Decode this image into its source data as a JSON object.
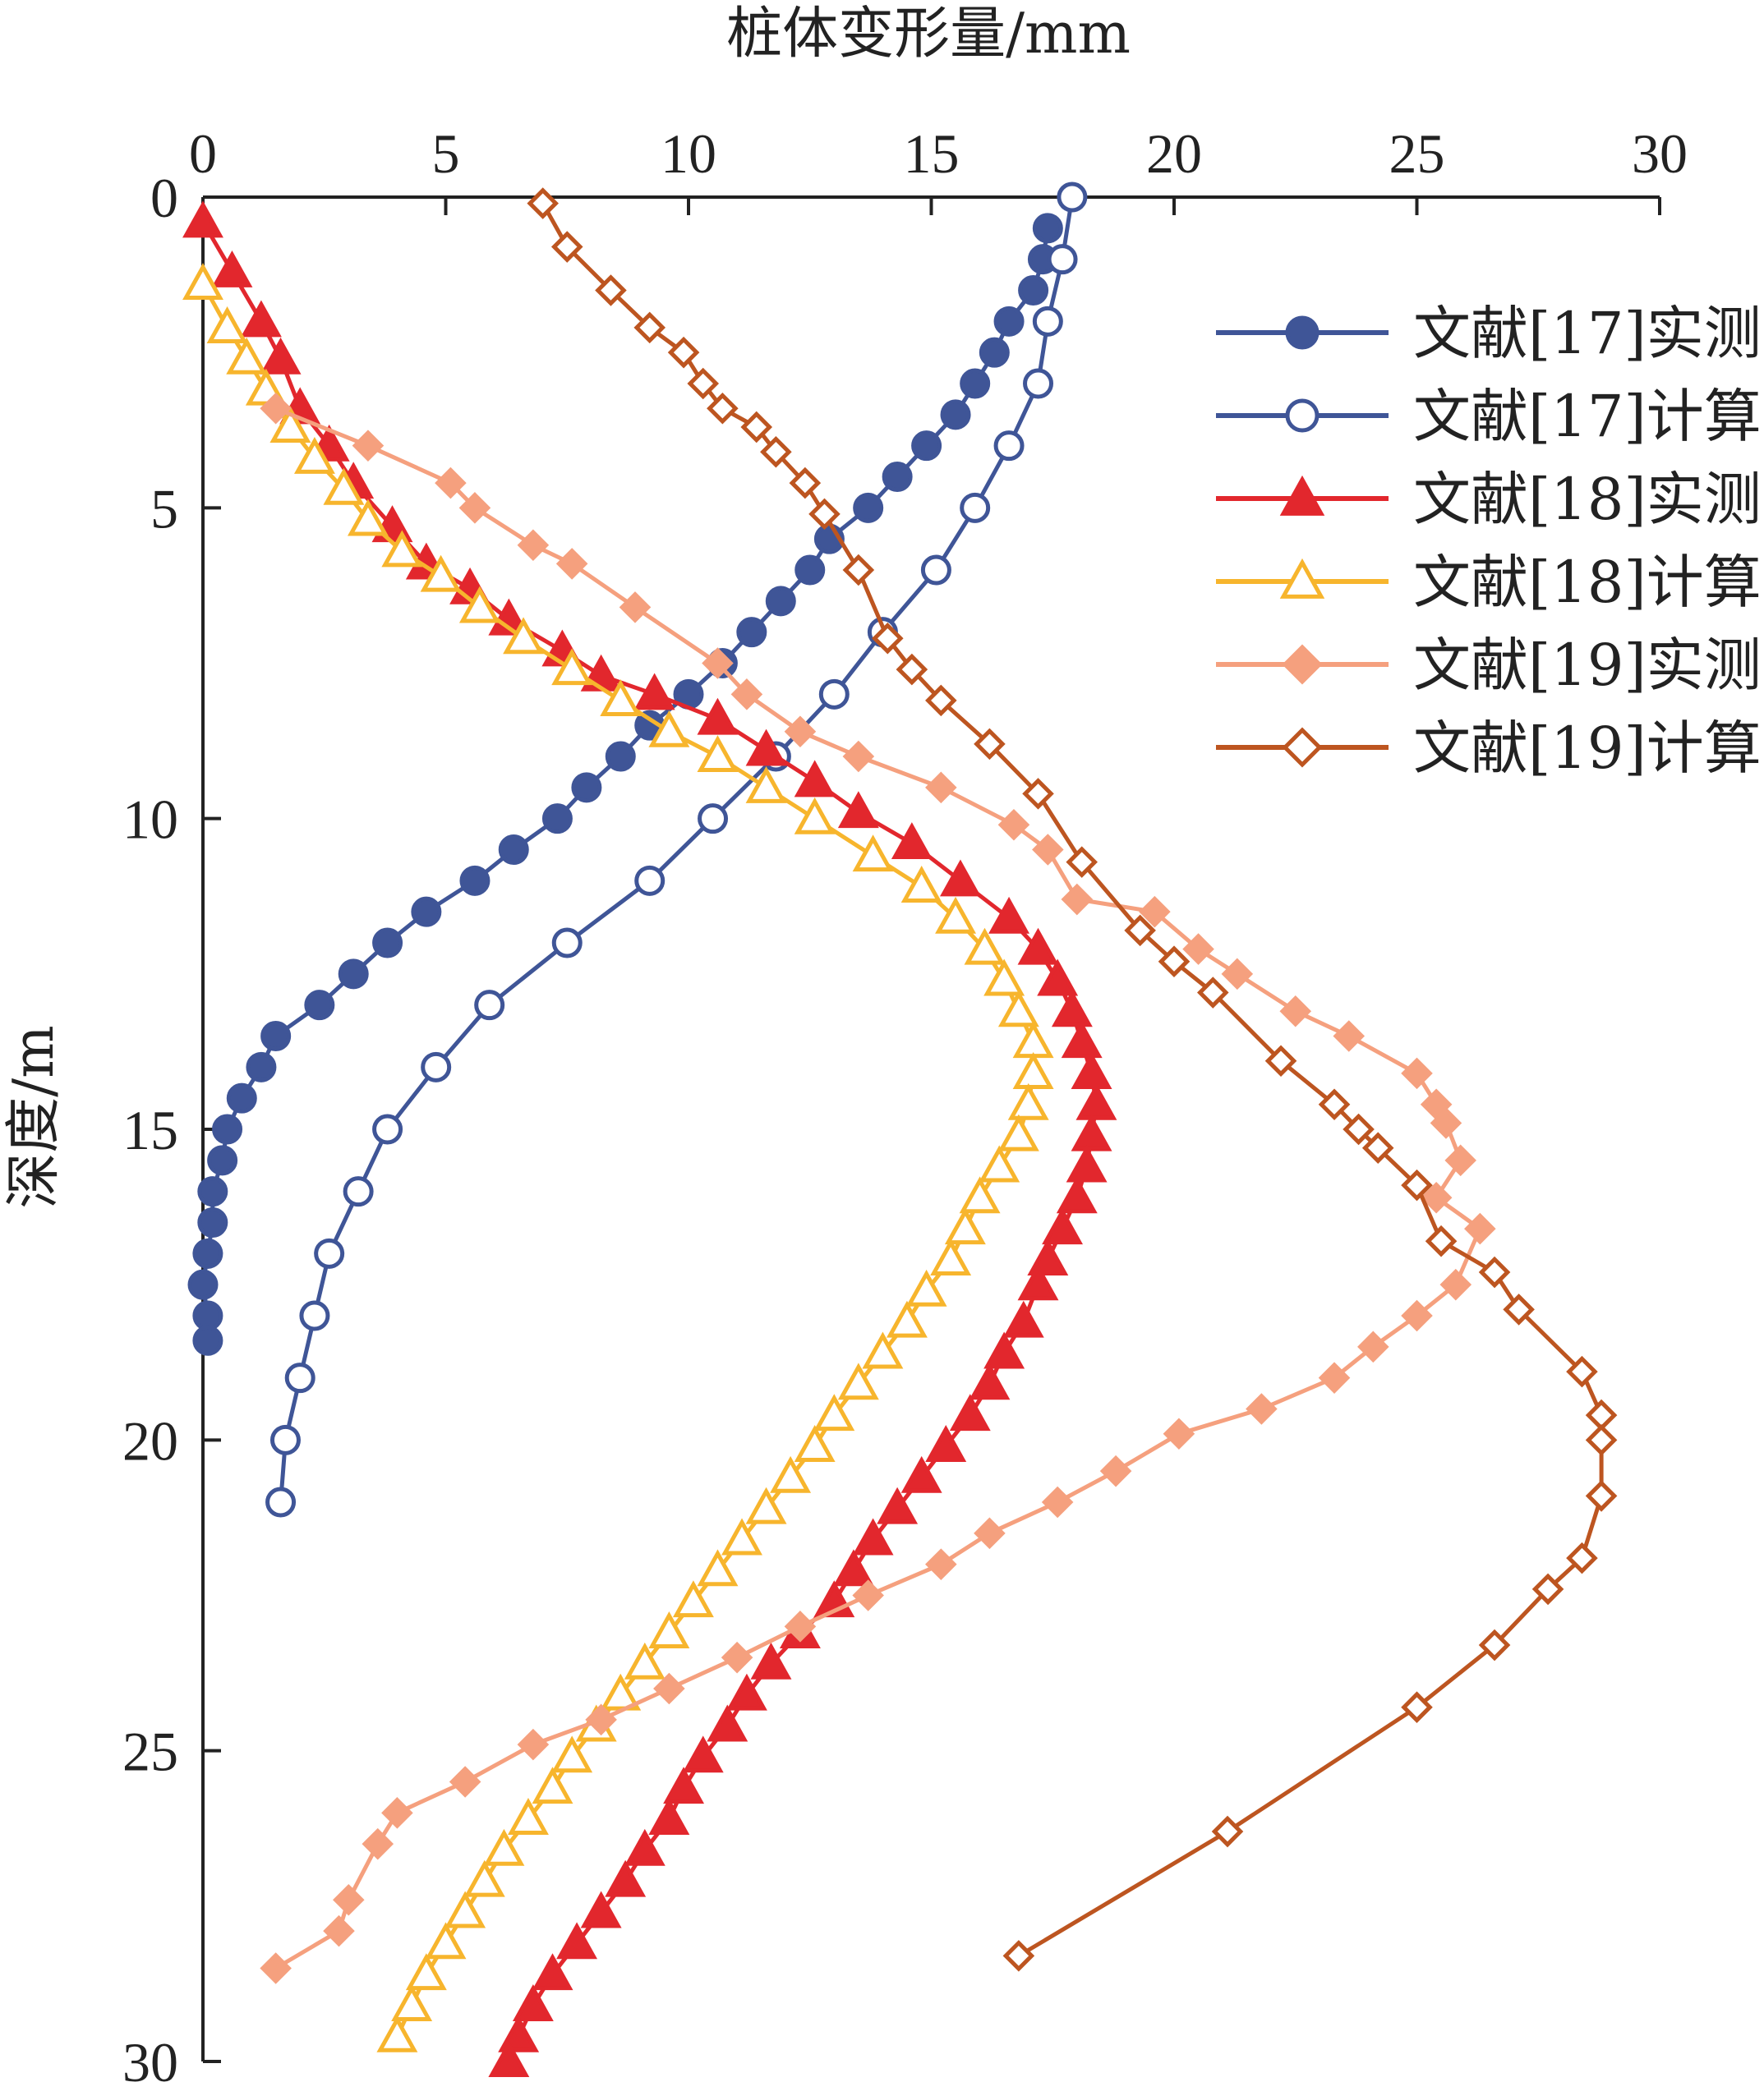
{
  "chart_data": {
    "type": "line",
    "xlabel": "桩体变形量/mm",
    "ylabel": "深度/m",
    "xlim": [
      0,
      30
    ],
    "ylim": [
      0,
      30
    ],
    "x_axis_position": "top",
    "y_inverted": true,
    "xticks": [
      "0",
      "5",
      "10",
      "15",
      "20",
      "25",
      "30"
    ],
    "yticks": [
      "0",
      "5",
      "10",
      "15",
      "20",
      "25",
      "30"
    ],
    "grid": false,
    "legend_position": "top-right",
    "series": [
      {
        "name": "文献[17]实测",
        "color": "#3f5597",
        "marker": "circle",
        "filled": true,
        "points": [
          [
            17.4,
            0.5
          ],
          [
            17.3,
            1.0
          ],
          [
            17.1,
            1.5
          ],
          [
            16.6,
            2.0
          ],
          [
            16.3,
            2.5
          ],
          [
            15.9,
            3.0
          ],
          [
            15.5,
            3.5
          ],
          [
            14.9,
            4.0
          ],
          [
            14.3,
            4.5
          ],
          [
            13.7,
            5.0
          ],
          [
            12.9,
            5.5
          ],
          [
            12.5,
            6.0
          ],
          [
            11.9,
            6.5
          ],
          [
            11.3,
            7.0
          ],
          [
            10.7,
            7.5
          ],
          [
            10.0,
            8.0
          ],
          [
            9.2,
            8.5
          ],
          [
            8.6,
            9.0
          ],
          [
            7.9,
            9.5
          ],
          [
            7.3,
            10.0
          ],
          [
            6.4,
            10.5
          ],
          [
            5.6,
            11.0
          ],
          [
            4.6,
            11.5
          ],
          [
            3.8,
            12.0
          ],
          [
            3.1,
            12.5
          ],
          [
            2.4,
            13.0
          ],
          [
            1.5,
            13.5
          ],
          [
            1.2,
            14.0
          ],
          [
            0.8,
            14.5
          ],
          [
            0.5,
            15.0
          ],
          [
            0.4,
            15.5
          ],
          [
            0.2,
            16.0
          ],
          [
            0.2,
            16.5
          ],
          [
            0.1,
            17.0
          ],
          [
            0.0,
            17.5
          ],
          [
            0.1,
            18.0
          ],
          [
            0.1,
            18.4
          ]
        ]
      },
      {
        "name": "文献[17]计算",
        "color": "#3f5597",
        "marker": "circle",
        "filled": false,
        "points": [
          [
            17.9,
            0.0
          ],
          [
            17.7,
            1.0
          ],
          [
            17.4,
            2.0
          ],
          [
            17.2,
            3.0
          ],
          [
            16.6,
            4.0
          ],
          [
            15.9,
            5.0
          ],
          [
            15.1,
            6.0
          ],
          [
            14.0,
            7.0
          ],
          [
            13.0,
            8.0
          ],
          [
            11.8,
            9.0
          ],
          [
            10.5,
            10.0
          ],
          [
            9.2,
            11.0
          ],
          [
            7.5,
            12.0
          ],
          [
            5.9,
            13.0
          ],
          [
            4.8,
            14.0
          ],
          [
            3.8,
            15.0
          ],
          [
            3.2,
            16.0
          ],
          [
            2.6,
            17.0
          ],
          [
            2.3,
            18.0
          ],
          [
            2.0,
            19.0
          ],
          [
            1.7,
            20.0
          ],
          [
            1.6,
            21.0
          ]
        ]
      },
      {
        "name": "文献[18]实测",
        "color": "#e2272d",
        "marker": "triangle",
        "filled": true,
        "points": [
          [
            0.0,
            0.4
          ],
          [
            0.6,
            1.2
          ],
          [
            1.2,
            2.0
          ],
          [
            1.6,
            2.6
          ],
          [
            2.0,
            3.4
          ],
          [
            2.6,
            4.0
          ],
          [
            3.1,
            4.6
          ],
          [
            3.9,
            5.3
          ],
          [
            4.6,
            5.9
          ],
          [
            5.5,
            6.3
          ],
          [
            6.3,
            6.8
          ],
          [
            7.4,
            7.3
          ],
          [
            8.2,
            7.7
          ],
          [
            9.3,
            8.0
          ],
          [
            10.6,
            8.4
          ],
          [
            11.6,
            8.9
          ],
          [
            12.6,
            9.4
          ],
          [
            13.5,
            9.9
          ],
          [
            14.6,
            10.4
          ],
          [
            15.6,
            11.0
          ],
          [
            16.6,
            11.6
          ],
          [
            17.2,
            12.1
          ],
          [
            17.6,
            12.6
          ],
          [
            17.9,
            13.1
          ],
          [
            18.1,
            13.6
          ],
          [
            18.3,
            14.1
          ],
          [
            18.4,
            14.6
          ],
          [
            18.3,
            15.1
          ],
          [
            18.2,
            15.6
          ],
          [
            18.0,
            16.1
          ],
          [
            17.7,
            16.6
          ],
          [
            17.4,
            17.1
          ],
          [
            17.2,
            17.5
          ],
          [
            16.9,
            18.1
          ],
          [
            16.5,
            18.6
          ],
          [
            16.2,
            19.1
          ],
          [
            15.8,
            19.6
          ],
          [
            15.3,
            20.1
          ],
          [
            14.8,
            20.6
          ],
          [
            14.3,
            21.1
          ],
          [
            13.8,
            21.6
          ],
          [
            13.4,
            22.1
          ],
          [
            13.0,
            22.6
          ],
          [
            12.3,
            23.1
          ],
          [
            11.7,
            23.6
          ],
          [
            11.2,
            24.1
          ],
          [
            10.8,
            24.6
          ],
          [
            10.3,
            25.1
          ],
          [
            9.9,
            25.6
          ],
          [
            9.6,
            26.1
          ],
          [
            9.1,
            26.6
          ],
          [
            8.7,
            27.1
          ],
          [
            8.2,
            27.6
          ],
          [
            7.7,
            28.1
          ],
          [
            7.2,
            28.6
          ],
          [
            6.8,
            29.1
          ],
          [
            6.5,
            29.6
          ],
          [
            6.3,
            30.0
          ]
        ]
      },
      {
        "name": "文献[18]计算",
        "color": "#f7b52d",
        "marker": "triangle",
        "filled": false,
        "points": [
          [
            0.0,
            1.4
          ],
          [
            0.5,
            2.1
          ],
          [
            0.9,
            2.6
          ],
          [
            1.3,
            3.1
          ],
          [
            1.8,
            3.7
          ],
          [
            2.3,
            4.2
          ],
          [
            2.9,
            4.7
          ],
          [
            3.4,
            5.2
          ],
          [
            4.1,
            5.7
          ],
          [
            4.9,
            6.1
          ],
          [
            5.7,
            6.6
          ],
          [
            6.6,
            7.1
          ],
          [
            7.6,
            7.6
          ],
          [
            8.6,
            8.1
          ],
          [
            9.6,
            8.6
          ],
          [
            10.6,
            9.0
          ],
          [
            11.6,
            9.5
          ],
          [
            12.6,
            10.0
          ],
          [
            13.8,
            10.6
          ],
          [
            14.8,
            11.1
          ],
          [
            15.5,
            11.6
          ],
          [
            16.1,
            12.1
          ],
          [
            16.5,
            12.6
          ],
          [
            16.8,
            13.1
          ],
          [
            17.1,
            13.6
          ],
          [
            17.1,
            14.1
          ],
          [
            17.0,
            14.6
          ],
          [
            16.8,
            15.1
          ],
          [
            16.4,
            15.6
          ],
          [
            16.0,
            16.1
          ],
          [
            15.7,
            16.6
          ],
          [
            15.4,
            17.1
          ],
          [
            14.9,
            17.6
          ],
          [
            14.5,
            18.1
          ],
          [
            14.0,
            18.6
          ],
          [
            13.5,
            19.1
          ],
          [
            13.0,
            19.6
          ],
          [
            12.6,
            20.1
          ],
          [
            12.1,
            20.6
          ],
          [
            11.6,
            21.1
          ],
          [
            11.1,
            21.6
          ],
          [
            10.6,
            22.1
          ],
          [
            10.1,
            22.6
          ],
          [
            9.6,
            23.1
          ],
          [
            9.1,
            23.6
          ],
          [
            8.6,
            24.1
          ],
          [
            8.1,
            24.6
          ],
          [
            7.6,
            25.1
          ],
          [
            7.2,
            25.6
          ],
          [
            6.7,
            26.1
          ],
          [
            6.2,
            26.6
          ],
          [
            5.8,
            27.1
          ],
          [
            5.4,
            27.6
          ],
          [
            5.0,
            28.1
          ],
          [
            4.6,
            28.6
          ],
          [
            4.3,
            29.1
          ],
          [
            4.0,
            29.6
          ]
        ]
      },
      {
        "name": "文献[19]实测",
        "color": "#f5a07e",
        "marker": "diamond",
        "filled": true,
        "points": [
          [
            1.5,
            3.4
          ],
          [
            3.4,
            4.0
          ],
          [
            5.1,
            4.6
          ],
          [
            5.6,
            5.0
          ],
          [
            6.8,
            5.6
          ],
          [
            7.6,
            5.9
          ],
          [
            8.9,
            6.6
          ],
          [
            10.6,
            7.5
          ],
          [
            11.2,
            8.0
          ],
          [
            12.3,
            8.6
          ],
          [
            13.5,
            9.0
          ],
          [
            15.2,
            9.5
          ],
          [
            16.7,
            10.1
          ],
          [
            17.4,
            10.5
          ],
          [
            18.0,
            11.3
          ],
          [
            19.6,
            11.5
          ],
          [
            20.5,
            12.1
          ],
          [
            21.3,
            12.5
          ],
          [
            22.5,
            13.1
          ],
          [
            23.6,
            13.5
          ],
          [
            25.0,
            14.1
          ],
          [
            25.4,
            14.6
          ],
          [
            25.6,
            14.9
          ],
          [
            25.9,
            15.5
          ],
          [
            25.4,
            16.1
          ],
          [
            26.3,
            16.6
          ],
          [
            25.8,
            17.5
          ],
          [
            25.0,
            18.0
          ],
          [
            24.1,
            18.5
          ],
          [
            23.3,
            19.0
          ],
          [
            21.8,
            19.5
          ],
          [
            20.1,
            19.9
          ],
          [
            18.8,
            20.5
          ],
          [
            17.6,
            21.0
          ],
          [
            16.2,
            21.5
          ],
          [
            15.2,
            22.0
          ],
          [
            13.7,
            22.5
          ],
          [
            12.3,
            23.0
          ],
          [
            11.0,
            23.5
          ],
          [
            9.6,
            24.0
          ],
          [
            8.2,
            24.5
          ],
          [
            6.8,
            24.9
          ],
          [
            5.4,
            25.5
          ],
          [
            4.0,
            26.0
          ],
          [
            3.6,
            26.5
          ],
          [
            3.0,
            27.4
          ],
          [
            2.8,
            27.9
          ],
          [
            1.5,
            28.5
          ]
        ]
      },
      {
        "name": "文献[19]计算",
        "color": "#bd5520",
        "marker": "diamond",
        "filled": false,
        "points": [
          [
            7.0,
            0.1
          ],
          [
            7.5,
            0.8
          ],
          [
            8.4,
            1.5
          ],
          [
            9.2,
            2.1
          ],
          [
            9.9,
            2.5
          ],
          [
            10.3,
            3.0
          ],
          [
            10.7,
            3.4
          ],
          [
            11.4,
            3.7
          ],
          [
            11.8,
            4.1
          ],
          [
            12.4,
            4.6
          ],
          [
            12.8,
            5.1
          ],
          [
            13.5,
            6.0
          ],
          [
            14.1,
            7.1
          ],
          [
            14.6,
            7.6
          ],
          [
            15.2,
            8.1
          ],
          [
            16.2,
            8.8
          ],
          [
            17.2,
            9.6
          ],
          [
            18.1,
            10.7
          ],
          [
            19.3,
            11.8
          ],
          [
            20.0,
            12.3
          ],
          [
            20.8,
            12.8
          ],
          [
            22.2,
            13.9
          ],
          [
            23.3,
            14.6
          ],
          [
            23.8,
            15.0
          ],
          [
            24.2,
            15.3
          ],
          [
            25.0,
            15.9
          ],
          [
            25.5,
            16.8
          ],
          [
            26.6,
            17.3
          ],
          [
            27.1,
            17.9
          ],
          [
            28.4,
            18.9
          ],
          [
            28.8,
            19.6
          ],
          [
            28.8,
            20.0
          ],
          [
            28.8,
            20.9
          ],
          [
            28.4,
            21.9
          ],
          [
            27.7,
            22.4
          ],
          [
            26.6,
            23.3
          ],
          [
            25.0,
            24.3
          ],
          [
            21.1,
            26.3
          ],
          [
            16.8,
            28.3
          ]
        ]
      }
    ]
  }
}
